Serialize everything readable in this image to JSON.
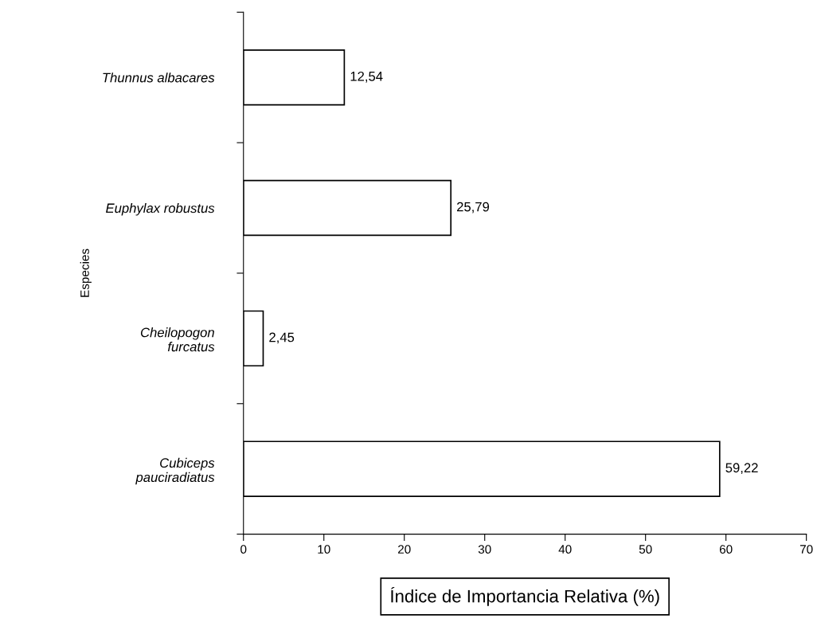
{
  "chart_data": {
    "type": "bar",
    "orientation": "horizontal",
    "categories": [
      "Thunnus albacares",
      "Euphylax robustus",
      "Cheilopogon\nfurcatus",
      "Cubiceps\npauciradiatus"
    ],
    "values": [
      12.54,
      25.79,
      2.45,
      59.22
    ],
    "value_labels": [
      "12,54",
      "25,79",
      "2,45",
      "59,22"
    ],
    "color": "#ffffff",
    "xlabel": "Índice de Importancia Relativa (%)",
    "ylabel": "Especies",
    "xlim": [
      0,
      70
    ],
    "xticks": [
      0,
      10,
      20,
      30,
      40,
      50,
      60,
      70
    ],
    "grid": false,
    "legend": false
  }
}
